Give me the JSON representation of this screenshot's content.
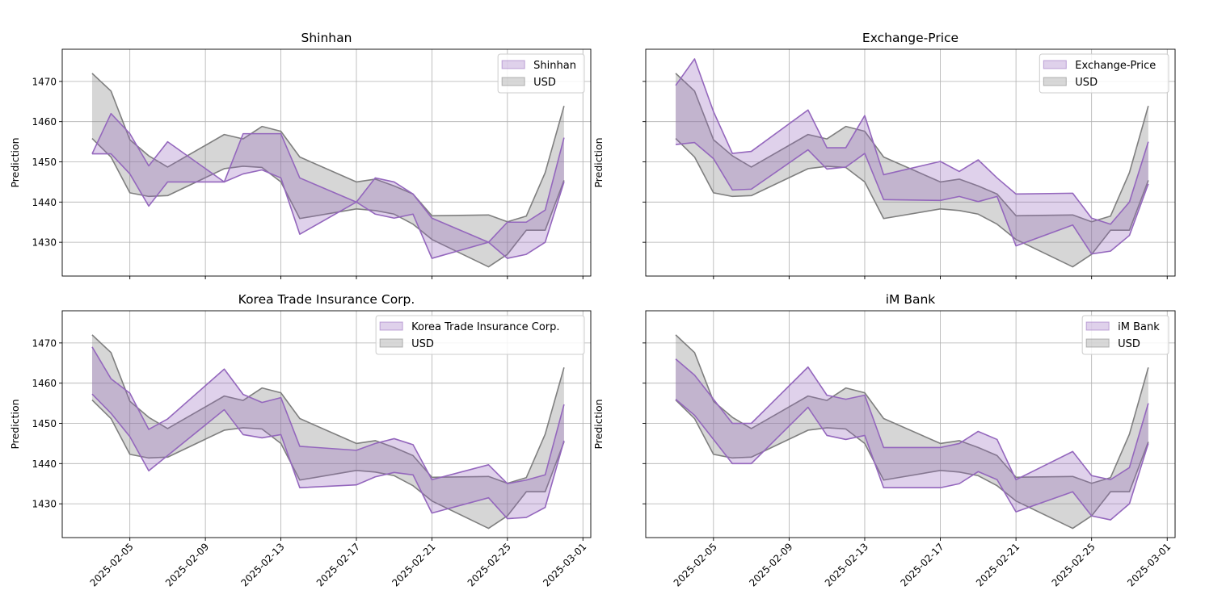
{
  "chart_data": [
    {
      "type": "area",
      "title": "Shinhan",
      "ylabel": "Prediction",
      "xlabel": "",
      "ylim": [
        1421.6,
        1478
      ],
      "xlim": [
        "2025-02-01T10:00",
        "2025-03-01T10:00"
      ],
      "y_ticks": [
        1430,
        1440,
        1450,
        1460,
        1470
      ],
      "x_ticks": [
        "2025-02-05",
        "2025-02-09",
        "2025-02-13",
        "2025-02-17",
        "2025-02-21",
        "2025-02-25",
        "2025-03-01"
      ],
      "show_x_ticklabels": false,
      "show_y_ticklabels": true,
      "grid": true,
      "legend_position": "top-right",
      "series": [
        {
          "name": "Shinhan",
          "color": "#9467bd",
          "x": [
            "2025-02-03",
            "2025-02-04",
            "2025-02-05",
            "2025-02-06",
            "2025-02-07",
            "2025-02-10",
            "2025-02-11",
            "2025-02-12",
            "2025-02-13",
            "2025-02-14",
            "2025-02-17",
            "2025-02-18",
            "2025-02-19",
            "2025-02-20",
            "2025-02-21",
            "2025-02-24",
            "2025-02-25",
            "2025-02-26",
            "2025-02-27",
            "2025-02-28"
          ],
          "upper": [
            1452,
            1462,
            1457,
            1449,
            1455,
            1445,
            1457,
            1457,
            1457,
            1446,
            1440,
            1446,
            1445,
            1442,
            1436,
            1430,
            1435,
            1435,
            1438,
            1456
          ],
          "lower": [
            1452,
            1452,
            1447,
            1439,
            1445,
            1445,
            1447,
            1448,
            1446,
            1432,
            1440,
            1437,
            1436,
            1437,
            1426,
            1430,
            1426,
            1427,
            1430,
            1445
          ]
        },
        {
          "name": "USD",
          "color": "#7f7f7f",
          "x": [
            "2025-02-03",
            "2025-02-04",
            "2025-02-05",
            "2025-02-06",
            "2025-02-07",
            "2025-02-10",
            "2025-02-11",
            "2025-02-12",
            "2025-02-13",
            "2025-02-14",
            "2025-02-17",
            "2025-02-18",
            "2025-02-19",
            "2025-02-20",
            "2025-02-21",
            "2025-02-24",
            "2025-02-25",
            "2025-02-26",
            "2025-02-27",
            "2025-02-28"
          ],
          "upper": [
            1472,
            1467.6,
            1455.5,
            1451.5,
            1448.7,
            1456.8,
            1455.7,
            1458.8,
            1457.6,
            1451.2,
            1445,
            1445.7,
            1444,
            1442,
            1436.6,
            1436.8,
            1435.1,
            1436.5,
            1447.3,
            1463.9
          ],
          "lower": [
            1455.8,
            1451.2,
            1442.3,
            1441.4,
            1441.6,
            1448.3,
            1448.9,
            1448.6,
            1445,
            1435.9,
            1438.3,
            1437.9,
            1437,
            1434.5,
            1430.7,
            1423.9,
            1427,
            1433,
            1433,
            1445.4
          ]
        }
      ]
    },
    {
      "type": "area",
      "title": "Exchange-Price",
      "ylabel": "Prediction",
      "xlabel": "",
      "ylim": [
        1421.6,
        1478
      ],
      "xlim": [
        "2025-02-01T10:00",
        "2025-03-01T10:00"
      ],
      "y_ticks": [
        1430,
        1440,
        1450,
        1460,
        1470
      ],
      "x_ticks": [
        "2025-02-05",
        "2025-02-09",
        "2025-02-13",
        "2025-02-17",
        "2025-02-21",
        "2025-02-25",
        "2025-03-01"
      ],
      "show_x_ticklabels": false,
      "show_y_ticklabels": false,
      "grid": true,
      "legend_position": "top-right",
      "series": [
        {
          "name": "Exchange-Price",
          "color": "#9467bd",
          "x": [
            "2025-02-03",
            "2025-02-04",
            "2025-02-05",
            "2025-02-06",
            "2025-02-07",
            "2025-02-10",
            "2025-02-11",
            "2025-02-12",
            "2025-02-13",
            "2025-02-14",
            "2025-02-17",
            "2025-02-18",
            "2025-02-19",
            "2025-02-20",
            "2025-02-21",
            "2025-02-24",
            "2025-02-25",
            "2025-02-26",
            "2025-02-27",
            "2025-02-28"
          ],
          "upper": [
            1469,
            1475.6,
            1462.5,
            1452.1,
            1452.6,
            1462.9,
            1453.5,
            1453.5,
            1461.5,
            1446.8,
            1450.1,
            1447.6,
            1450.5,
            1446,
            1442,
            1442.2,
            1436,
            1434.5,
            1440,
            1455
          ],
          "lower": [
            1454.3,
            1454.8,
            1450.8,
            1443,
            1443.2,
            1453,
            1448.2,
            1448.7,
            1452.1,
            1440.6,
            1440.4,
            1441.4,
            1440.1,
            1441.4,
            1429.1,
            1434.3,
            1427.1,
            1427.8,
            1431.7,
            1444.5
          ]
        },
        {
          "name": "USD",
          "color": "#7f7f7f",
          "x": [
            "2025-02-03",
            "2025-02-04",
            "2025-02-05",
            "2025-02-06",
            "2025-02-07",
            "2025-02-10",
            "2025-02-11",
            "2025-02-12",
            "2025-02-13",
            "2025-02-14",
            "2025-02-17",
            "2025-02-18",
            "2025-02-19",
            "2025-02-20",
            "2025-02-21",
            "2025-02-24",
            "2025-02-25",
            "2025-02-26",
            "2025-02-27",
            "2025-02-28"
          ],
          "upper": [
            1472,
            1467.6,
            1455.5,
            1451.5,
            1448.7,
            1456.8,
            1455.7,
            1458.8,
            1457.6,
            1451.2,
            1445,
            1445.7,
            1444,
            1442,
            1436.6,
            1436.8,
            1435.1,
            1436.5,
            1447.3,
            1463.9
          ],
          "lower": [
            1455.8,
            1451.2,
            1442.3,
            1441.4,
            1441.6,
            1448.3,
            1448.9,
            1448.6,
            1445,
            1435.9,
            1438.3,
            1437.9,
            1437,
            1434.5,
            1430.7,
            1423.9,
            1427,
            1433,
            1433,
            1445.4
          ]
        }
      ]
    },
    {
      "type": "area",
      "title": "Korea Trade Insurance Corp.",
      "ylabel": "Prediction",
      "xlabel": "",
      "ylim": [
        1421.6,
        1478
      ],
      "xlim": [
        "2025-02-01T10:00",
        "2025-03-01T10:00"
      ],
      "y_ticks": [
        1430,
        1440,
        1450,
        1460,
        1470
      ],
      "x_ticks": [
        "2025-02-05",
        "2025-02-09",
        "2025-02-13",
        "2025-02-17",
        "2025-02-21",
        "2025-02-25",
        "2025-03-01"
      ],
      "show_x_ticklabels": true,
      "show_y_ticklabels": true,
      "grid": true,
      "legend_position": "top-right",
      "series": [
        {
          "name": "Korea Trade Insurance Corp.",
          "color": "#9467bd",
          "x": [
            "2025-02-03",
            "2025-02-04",
            "2025-02-05",
            "2025-02-06",
            "2025-02-07",
            "2025-02-10",
            "2025-02-11",
            "2025-02-12",
            "2025-02-13",
            "2025-02-14",
            "2025-02-17",
            "2025-02-18",
            "2025-02-19",
            "2025-02-20",
            "2025-02-21",
            "2025-02-24",
            "2025-02-25",
            "2025-02-26",
            "2025-02-27",
            "2025-02-28"
          ],
          "upper": [
            1469,
            1461.1,
            1457.5,
            1448.5,
            1451.1,
            1463.5,
            1457.2,
            1455.2,
            1456.4,
            1444.3,
            1443.3,
            1445,
            1446.2,
            1444.7,
            1436,
            1439.7,
            1435,
            1435.9,
            1437.2,
            1454.7
          ],
          "lower": [
            1457.3,
            1452.5,
            1446.7,
            1438.2,
            1442,
            1453.4,
            1447.2,
            1446.4,
            1447.2,
            1434,
            1434.7,
            1436.7,
            1437.8,
            1437.2,
            1427.7,
            1431.5,
            1426.3,
            1426.6,
            1429.1,
            1445.7
          ]
        },
        {
          "name": "USD",
          "color": "#7f7f7f",
          "x": [
            "2025-02-03",
            "2025-02-04",
            "2025-02-05",
            "2025-02-06",
            "2025-02-07",
            "2025-02-10",
            "2025-02-11",
            "2025-02-12",
            "2025-02-13",
            "2025-02-14",
            "2025-02-17",
            "2025-02-18",
            "2025-02-19",
            "2025-02-20",
            "2025-02-21",
            "2025-02-24",
            "2025-02-25",
            "2025-02-26",
            "2025-02-27",
            "2025-02-28"
          ],
          "upper": [
            1472,
            1467.6,
            1455.5,
            1451.5,
            1448.7,
            1456.8,
            1455.7,
            1458.8,
            1457.6,
            1451.2,
            1445,
            1445.7,
            1444,
            1442,
            1436.6,
            1436.8,
            1435.1,
            1436.5,
            1447.3,
            1463.9
          ],
          "lower": [
            1455.8,
            1451.2,
            1442.3,
            1441.4,
            1441.6,
            1448.3,
            1448.9,
            1448.6,
            1445,
            1435.9,
            1438.3,
            1437.9,
            1437,
            1434.5,
            1430.7,
            1423.9,
            1427,
            1433,
            1433,
            1445.4
          ]
        }
      ]
    },
    {
      "type": "area",
      "title": "iM Bank",
      "ylabel": "Prediction",
      "xlabel": "",
      "ylim": [
        1421.6,
        1478
      ],
      "xlim": [
        "2025-02-01T10:00",
        "2025-03-01T10:00"
      ],
      "y_ticks": [
        1430,
        1440,
        1450,
        1460,
        1470
      ],
      "x_ticks": [
        "2025-02-05",
        "2025-02-09",
        "2025-02-13",
        "2025-02-17",
        "2025-02-21",
        "2025-02-25",
        "2025-03-01"
      ],
      "show_x_ticklabels": true,
      "show_y_ticklabels": false,
      "grid": true,
      "legend_position": "top-right",
      "series": [
        {
          "name": "iM Bank",
          "color": "#9467bd",
          "x": [
            "2025-02-03",
            "2025-02-04",
            "2025-02-05",
            "2025-02-06",
            "2025-02-07",
            "2025-02-10",
            "2025-02-11",
            "2025-02-12",
            "2025-02-13",
            "2025-02-14",
            "2025-02-17",
            "2025-02-18",
            "2025-02-19",
            "2025-02-20",
            "2025-02-21",
            "2025-02-24",
            "2025-02-25",
            "2025-02-26",
            "2025-02-27",
            "2025-02-28"
          ],
          "upper": [
            1466,
            1462,
            1456,
            1450,
            1450,
            1464,
            1457,
            1456,
            1457,
            1444,
            1444,
            1445,
            1448,
            1446,
            1436,
            1443,
            1437,
            1436,
            1439,
            1455
          ],
          "lower": [
            1456,
            1452,
            1446,
            1440,
            1440,
            1454,
            1447,
            1446,
            1447,
            1434,
            1434,
            1435,
            1438,
            1436,
            1428,
            1433,
            1427,
            1426,
            1430,
            1445
          ]
        },
        {
          "name": "USD",
          "color": "#7f7f7f",
          "x": [
            "2025-02-03",
            "2025-02-04",
            "2025-02-05",
            "2025-02-06",
            "2025-02-07",
            "2025-02-10",
            "2025-02-11",
            "2025-02-12",
            "2025-02-13",
            "2025-02-14",
            "2025-02-17",
            "2025-02-18",
            "2025-02-19",
            "2025-02-20",
            "2025-02-21",
            "2025-02-24",
            "2025-02-25",
            "2025-02-26",
            "2025-02-27",
            "2025-02-28"
          ],
          "upper": [
            1472,
            1467.6,
            1455.5,
            1451.5,
            1448.7,
            1456.8,
            1455.7,
            1458.8,
            1457.6,
            1451.2,
            1445,
            1445.7,
            1444,
            1442,
            1436.6,
            1436.8,
            1435.1,
            1436.5,
            1447.3,
            1463.9
          ],
          "lower": [
            1455.8,
            1451.2,
            1442.3,
            1441.4,
            1441.6,
            1448.3,
            1448.9,
            1448.6,
            1445,
            1435.9,
            1438.3,
            1437.9,
            1437,
            1434.5,
            1430.7,
            1423.9,
            1427,
            1433,
            1433,
            1445.4
          ]
        }
      ]
    }
  ]
}
